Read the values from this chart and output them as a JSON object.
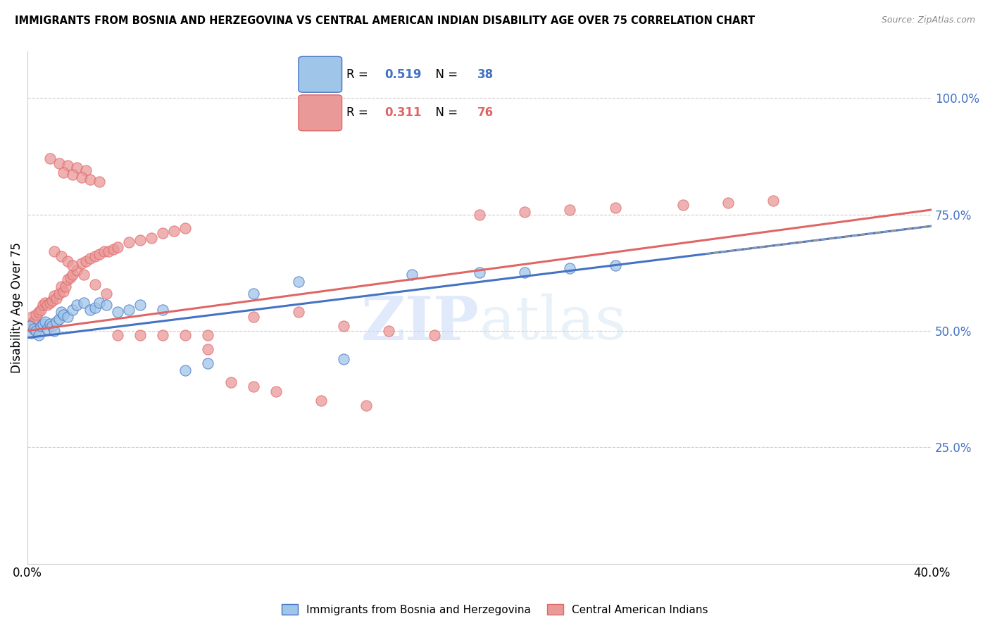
{
  "title": "IMMIGRANTS FROM BOSNIA AND HERZEGOVINA VS CENTRAL AMERICAN INDIAN DISABILITY AGE OVER 75 CORRELATION CHART",
  "source": "Source: ZipAtlas.com",
  "ylabel": "Disability Age Over 75",
  "legend1_label": "Immigrants from Bosnia and Herzegovina",
  "legend2_label": "Central American Indians",
  "r1": 0.519,
  "n1": 38,
  "r2": 0.311,
  "n2": 76,
  "color_blue": "#9fc5e8",
  "color_pink": "#ea9999",
  "color_blue_line": "#4472c4",
  "color_pink_line": "#e06666",
  "color_label_blue": "#4472c4",
  "color_label_pink": "#e06666",
  "watermark_zip": "ZIP",
  "watermark_atlas": "atlas",
  "xlim": [
    0.0,
    0.4
  ],
  "ylim": [
    0.0,
    1.1
  ],
  "yticks": [
    0.25,
    0.5,
    0.75,
    1.0
  ],
  "ytick_labels": [
    "25.0%",
    "50.0%",
    "75.0%",
    "100.0%"
  ],
  "bosnia_x": [
    0.001,
    0.002,
    0.003,
    0.004,
    0.005,
    0.006,
    0.007,
    0.008,
    0.009,
    0.01,
    0.011,
    0.012,
    0.013,
    0.014,
    0.015,
    0.016,
    0.018,
    0.02,
    0.022,
    0.025,
    0.028,
    0.03,
    0.032,
    0.035,
    0.04,
    0.045,
    0.05,
    0.06,
    0.07,
    0.08,
    0.1,
    0.12,
    0.14,
    0.17,
    0.2,
    0.22,
    0.24,
    0.26
  ],
  "bosnia_y": [
    0.51,
    0.495,
    0.505,
    0.5,
    0.49,
    0.51,
    0.515,
    0.52,
    0.505,
    0.515,
    0.51,
    0.5,
    0.52,
    0.525,
    0.54,
    0.535,
    0.53,
    0.545,
    0.555,
    0.56,
    0.545,
    0.55,
    0.56,
    0.555,
    0.54,
    0.545,
    0.555,
    0.545,
    0.415,
    0.43,
    0.58,
    0.605,
    0.44,
    0.62,
    0.625,
    0.625,
    0.635,
    0.64
  ],
  "central_x": [
    0.001,
    0.002,
    0.003,
    0.004,
    0.005,
    0.006,
    0.007,
    0.008,
    0.009,
    0.01,
    0.011,
    0.012,
    0.013,
    0.014,
    0.015,
    0.016,
    0.017,
    0.018,
    0.019,
    0.02,
    0.022,
    0.024,
    0.026,
    0.028,
    0.03,
    0.032,
    0.034,
    0.036,
    0.038,
    0.04,
    0.045,
    0.05,
    0.055,
    0.06,
    0.065,
    0.07,
    0.012,
    0.015,
    0.018,
    0.02,
    0.025,
    0.03,
    0.035,
    0.01,
    0.014,
    0.018,
    0.022,
    0.026,
    0.016,
    0.02,
    0.024,
    0.028,
    0.032,
    0.2,
    0.22,
    0.24,
    0.26,
    0.29,
    0.31,
    0.33,
    0.1,
    0.12,
    0.14,
    0.16,
    0.18,
    0.08,
    0.09,
    0.1,
    0.11,
    0.13,
    0.15,
    0.04,
    0.05,
    0.06,
    0.07,
    0.08
  ],
  "central_y": [
    0.515,
    0.53,
    0.52,
    0.535,
    0.54,
    0.545,
    0.555,
    0.56,
    0.555,
    0.56,
    0.565,
    0.575,
    0.57,
    0.58,
    0.595,
    0.585,
    0.595,
    0.61,
    0.615,
    0.62,
    0.63,
    0.645,
    0.65,
    0.655,
    0.66,
    0.665,
    0.67,
    0.67,
    0.675,
    0.68,
    0.69,
    0.695,
    0.7,
    0.71,
    0.715,
    0.72,
    0.67,
    0.66,
    0.65,
    0.64,
    0.62,
    0.6,
    0.58,
    0.87,
    0.86,
    0.855,
    0.85,
    0.845,
    0.84,
    0.835,
    0.83,
    0.825,
    0.82,
    0.75,
    0.755,
    0.76,
    0.765,
    0.77,
    0.775,
    0.78,
    0.53,
    0.54,
    0.51,
    0.5,
    0.49,
    0.46,
    0.39,
    0.38,
    0.37,
    0.35,
    0.34,
    0.49,
    0.49,
    0.49,
    0.49,
    0.49
  ]
}
